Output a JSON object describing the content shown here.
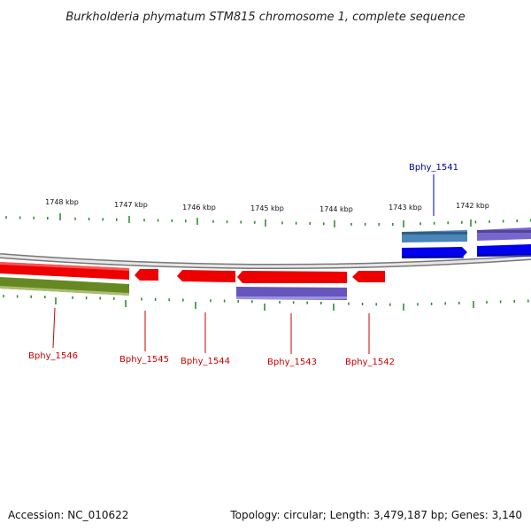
{
  "title": "Burkholderia phymatum STM815 chromosome 1, complete sequence",
  "footer": {
    "accession": "Accession: NC_010622",
    "summary": "Topology: circular; Length: 3,479,187 bp; Genes: 3,140"
  },
  "colors": {
    "forward_gene": "#0000ee",
    "forward_gene_alt": "#4a86b8",
    "forward_purple": "#7766cc",
    "reverse_gene": "#ee0000",
    "reverse_purple": "#6655bb",
    "reverse_olive": "#668822",
    "tick": "#228822",
    "backbone": "#999999",
    "label_reverse": "#cc0000",
    "label_forward": "#000099"
  },
  "scale_ticks": [
    {
      "label": "1748 kbp"
    },
    {
      "label": "1747 kbp"
    },
    {
      "label": "1746 kbp"
    },
    {
      "label": "1745 kbp"
    },
    {
      "label": "1744 kbp"
    },
    {
      "label": "1743 kbp"
    },
    {
      "label": "1742 kbp"
    }
  ],
  "gene_labels": [
    {
      "name": "Bphy_1541",
      "strand": "forward"
    },
    {
      "name": "Bphy_1546",
      "strand": "reverse"
    },
    {
      "name": "Bphy_1545",
      "strand": "reverse"
    },
    {
      "name": "Bphy_1544",
      "strand": "reverse"
    },
    {
      "name": "Bphy_1543",
      "strand": "reverse"
    },
    {
      "name": "Bphy_1542",
      "strand": "reverse"
    }
  ]
}
